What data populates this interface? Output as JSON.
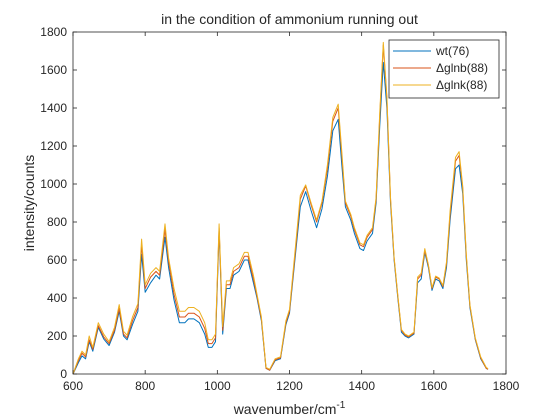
{
  "chart_data": {
    "type": "line",
    "title": "in the condition of ammonium running out",
    "xlabel": "wavenumber/cm",
    "xlabel_superscript": "-1",
    "ylabel": "intensity/counts",
    "xlim": [
      600,
      1800
    ],
    "ylim": [
      0,
      1800
    ],
    "xticks": [
      600,
      800,
      1000,
      1200,
      1400,
      1600,
      1800
    ],
    "yticks": [
      0,
      200,
      400,
      600,
      800,
      1000,
      1200,
      1400,
      1600,
      1800
    ],
    "grid": false,
    "legend_position": "top-right",
    "series": [
      {
        "name": "wt(76)",
        "color": "#0072BD",
        "points": [
          [
            600,
            0
          ],
          [
            615,
            60
          ],
          [
            625,
            95
          ],
          [
            635,
            80
          ],
          [
            645,
            170
          ],
          [
            655,
            120
          ],
          [
            670,
            245
          ],
          [
            685,
            185
          ],
          [
            700,
            150
          ],
          [
            715,
            220
          ],
          [
            728,
            330
          ],
          [
            740,
            200
          ],
          [
            750,
            180
          ],
          [
            765,
            260
          ],
          [
            780,
            330
          ],
          [
            790,
            630
          ],
          [
            800,
            430
          ],
          [
            815,
            480
          ],
          [
            830,
            520
          ],
          [
            840,
            500
          ],
          [
            855,
            720
          ],
          [
            865,
            560
          ],
          [
            880,
            390
          ],
          [
            895,
            270
          ],
          [
            910,
            270
          ],
          [
            920,
            290
          ],
          [
            935,
            290
          ],
          [
            950,
            270
          ],
          [
            965,
            210
          ],
          [
            975,
            140
          ],
          [
            985,
            140
          ],
          [
            995,
            170
          ],
          [
            1005,
            750
          ],
          [
            1015,
            210
          ],
          [
            1025,
            450
          ],
          [
            1035,
            450
          ],
          [
            1045,
            520
          ],
          [
            1060,
            540
          ],
          [
            1075,
            600
          ],
          [
            1085,
            600
          ],
          [
            1100,
            480
          ],
          [
            1110,
            400
          ],
          [
            1122,
            280
          ],
          [
            1135,
            30
          ],
          [
            1145,
            20
          ],
          [
            1160,
            70
          ],
          [
            1175,
            80
          ],
          [
            1190,
            260
          ],
          [
            1200,
            320
          ],
          [
            1215,
            600
          ],
          [
            1230,
            880
          ],
          [
            1245,
            960
          ],
          [
            1260,
            860
          ],
          [
            1275,
            770
          ],
          [
            1290,
            870
          ],
          [
            1305,
            1040
          ],
          [
            1320,
            1280
          ],
          [
            1335,
            1340
          ],
          [
            1345,
            1100
          ],
          [
            1355,
            880
          ],
          [
            1370,
            810
          ],
          [
            1380,
            740
          ],
          [
            1395,
            660
          ],
          [
            1405,
            650
          ],
          [
            1415,
            700
          ],
          [
            1430,
            740
          ],
          [
            1440,
            900
          ],
          [
            1450,
            1300
          ],
          [
            1460,
            1640
          ],
          [
            1470,
            1400
          ],
          [
            1480,
            900
          ],
          [
            1490,
            600
          ],
          [
            1500,
            400
          ],
          [
            1510,
            220
          ],
          [
            1520,
            200
          ],
          [
            1530,
            190
          ],
          [
            1545,
            210
          ],
          [
            1555,
            480
          ],
          [
            1565,
            500
          ],
          [
            1575,
            640
          ],
          [
            1585,
            560
          ],
          [
            1595,
            440
          ],
          [
            1605,
            500
          ],
          [
            1615,
            490
          ],
          [
            1625,
            450
          ],
          [
            1635,
            560
          ],
          [
            1645,
            810
          ],
          [
            1660,
            1080
          ],
          [
            1670,
            1100
          ],
          [
            1680,
            950
          ],
          [
            1690,
            600
          ],
          [
            1700,
            350
          ],
          [
            1715,
            180
          ],
          [
            1730,
            80
          ],
          [
            1745,
            30
          ],
          [
            1750,
            25
          ]
        ]
      },
      {
        "name": "Δglnb(88)",
        "color": "#D95319",
        "points": [
          [
            600,
            0
          ],
          [
            615,
            70
          ],
          [
            625,
            110
          ],
          [
            635,
            90
          ],
          [
            645,
            180
          ],
          [
            655,
            130
          ],
          [
            670,
            255
          ],
          [
            685,
            195
          ],
          [
            700,
            160
          ],
          [
            715,
            230
          ],
          [
            728,
            345
          ],
          [
            740,
            210
          ],
          [
            750,
            190
          ],
          [
            765,
            280
          ],
          [
            780,
            350
          ],
          [
            790,
            680
          ],
          [
            800,
            450
          ],
          [
            815,
            510
          ],
          [
            830,
            540
          ],
          [
            840,
            520
          ],
          [
            855,
            760
          ],
          [
            865,
            590
          ],
          [
            880,
            420
          ],
          [
            895,
            300
          ],
          [
            910,
            300
          ],
          [
            920,
            320
          ],
          [
            935,
            320
          ],
          [
            950,
            300
          ],
          [
            965,
            240
          ],
          [
            975,
            160
          ],
          [
            985,
            160
          ],
          [
            995,
            190
          ],
          [
            1005,
            770
          ],
          [
            1015,
            230
          ],
          [
            1025,
            470
          ],
          [
            1035,
            470
          ],
          [
            1045,
            540
          ],
          [
            1060,
            560
          ],
          [
            1075,
            620
          ],
          [
            1085,
            620
          ],
          [
            1100,
            500
          ],
          [
            1110,
            410
          ],
          [
            1122,
            290
          ],
          [
            1135,
            30
          ],
          [
            1145,
            20
          ],
          [
            1160,
            75
          ],
          [
            1175,
            85
          ],
          [
            1190,
            270
          ],
          [
            1200,
            330
          ],
          [
            1215,
            620
          ],
          [
            1230,
            920
          ],
          [
            1245,
            990
          ],
          [
            1260,
            890
          ],
          [
            1275,
            800
          ],
          [
            1290,
            900
          ],
          [
            1305,
            1080
          ],
          [
            1320,
            1330
          ],
          [
            1335,
            1400
          ],
          [
            1345,
            1150
          ],
          [
            1355,
            900
          ],
          [
            1370,
            830
          ],
          [
            1380,
            760
          ],
          [
            1395,
            680
          ],
          [
            1405,
            670
          ],
          [
            1415,
            720
          ],
          [
            1430,
            760
          ],
          [
            1440,
            920
          ],
          [
            1450,
            1350
          ],
          [
            1460,
            1730
          ],
          [
            1470,
            1450
          ],
          [
            1480,
            920
          ],
          [
            1490,
            610
          ],
          [
            1500,
            410
          ],
          [
            1510,
            230
          ],
          [
            1520,
            205
          ],
          [
            1530,
            195
          ],
          [
            1545,
            215
          ],
          [
            1555,
            500
          ],
          [
            1565,
            520
          ],
          [
            1575,
            650
          ],
          [
            1585,
            570
          ],
          [
            1595,
            450
          ],
          [
            1605,
            510
          ],
          [
            1615,
            500
          ],
          [
            1625,
            460
          ],
          [
            1635,
            580
          ],
          [
            1645,
            840
          ],
          [
            1660,
            1120
          ],
          [
            1670,
            1150
          ],
          [
            1680,
            980
          ],
          [
            1690,
            620
          ],
          [
            1700,
            360
          ],
          [
            1715,
            185
          ],
          [
            1730,
            85
          ],
          [
            1745,
            30
          ],
          [
            1750,
            25
          ]
        ]
      },
      {
        "name": "Δglnk(88)",
        "color": "#EDB120",
        "points": [
          [
            600,
            0
          ],
          [
            615,
            80
          ],
          [
            625,
            120
          ],
          [
            635,
            100
          ],
          [
            645,
            200
          ],
          [
            655,
            140
          ],
          [
            670,
            270
          ],
          [
            685,
            210
          ],
          [
            700,
            170
          ],
          [
            715,
            245
          ],
          [
            728,
            365
          ],
          [
            740,
            225
          ],
          [
            750,
            205
          ],
          [
            765,
            300
          ],
          [
            780,
            370
          ],
          [
            790,
            710
          ],
          [
            800,
            470
          ],
          [
            815,
            530
          ],
          [
            830,
            560
          ],
          [
            840,
            540
          ],
          [
            855,
            790
          ],
          [
            865,
            610
          ],
          [
            880,
            450
          ],
          [
            895,
            330
          ],
          [
            910,
            330
          ],
          [
            920,
            350
          ],
          [
            935,
            350
          ],
          [
            950,
            330
          ],
          [
            965,
            270
          ],
          [
            975,
            180
          ],
          [
            985,
            180
          ],
          [
            995,
            210
          ],
          [
            1005,
            790
          ],
          [
            1015,
            250
          ],
          [
            1025,
            490
          ],
          [
            1035,
            490
          ],
          [
            1045,
            560
          ],
          [
            1060,
            580
          ],
          [
            1075,
            640
          ],
          [
            1085,
            640
          ],
          [
            1100,
            520
          ],
          [
            1110,
            420
          ],
          [
            1122,
            300
          ],
          [
            1135,
            35
          ],
          [
            1145,
            25
          ],
          [
            1160,
            80
          ],
          [
            1175,
            90
          ],
          [
            1190,
            280
          ],
          [
            1200,
            340
          ],
          [
            1215,
            640
          ],
          [
            1230,
            940
          ],
          [
            1245,
            995
          ],
          [
            1260,
            900
          ],
          [
            1275,
            810
          ],
          [
            1290,
            910
          ],
          [
            1305,
            1100
          ],
          [
            1320,
            1350
          ],
          [
            1335,
            1420
          ],
          [
            1345,
            1170
          ],
          [
            1355,
            910
          ],
          [
            1370,
            840
          ],
          [
            1380,
            770
          ],
          [
            1395,
            690
          ],
          [
            1405,
            680
          ],
          [
            1415,
            730
          ],
          [
            1430,
            770
          ],
          [
            1440,
            930
          ],
          [
            1450,
            1370
          ],
          [
            1460,
            1745
          ],
          [
            1470,
            1460
          ],
          [
            1480,
            930
          ],
          [
            1490,
            615
          ],
          [
            1500,
            415
          ],
          [
            1510,
            235
          ],
          [
            1520,
            210
          ],
          [
            1530,
            200
          ],
          [
            1545,
            220
          ],
          [
            1555,
            510
          ],
          [
            1565,
            530
          ],
          [
            1575,
            660
          ],
          [
            1585,
            575
          ],
          [
            1595,
            455
          ],
          [
            1605,
            515
          ],
          [
            1615,
            505
          ],
          [
            1625,
            465
          ],
          [
            1635,
            590
          ],
          [
            1645,
            860
          ],
          [
            1660,
            1140
          ],
          [
            1670,
            1170
          ],
          [
            1680,
            990
          ],
          [
            1690,
            630
          ],
          [
            1700,
            365
          ],
          [
            1715,
            190
          ],
          [
            1730,
            90
          ],
          [
            1745,
            35
          ],
          [
            1750,
            28
          ]
        ]
      }
    ]
  }
}
